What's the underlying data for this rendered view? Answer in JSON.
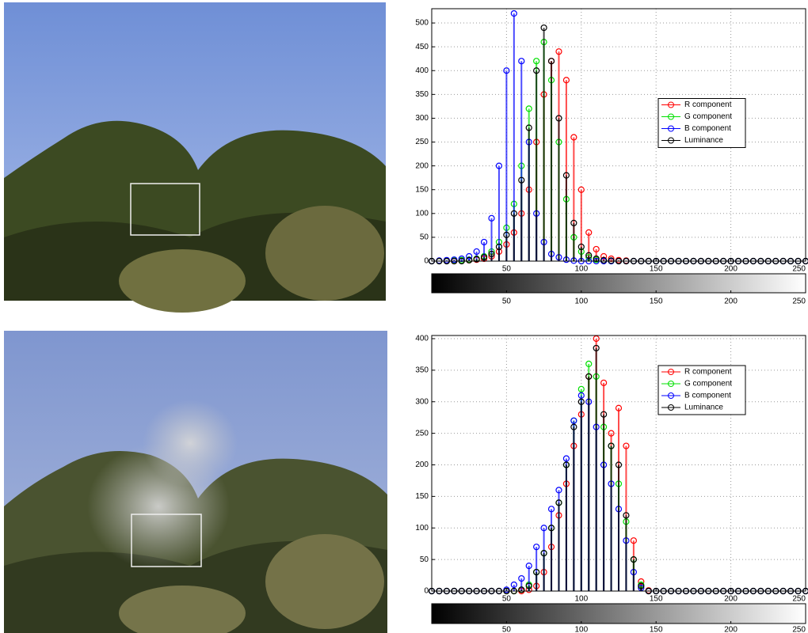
{
  "chart_data": [
    {
      "type": "stem",
      "x": [
        0,
        5,
        10,
        15,
        20,
        25,
        30,
        35,
        40,
        45,
        50,
        55,
        60,
        65,
        70,
        75,
        80,
        85,
        90,
        95,
        100,
        105,
        110,
        115,
        120,
        125,
        130,
        135,
        140,
        145,
        150,
        155,
        160,
        165,
        170,
        175,
        180,
        185,
        190,
        195,
        200,
        205,
        210,
        215,
        220,
        225,
        230,
        235,
        240,
        245,
        250
      ],
      "series": [
        {
          "name": "R component",
          "color": "#ff0000",
          "values": [
            0,
            0,
            0,
            0,
            1,
            2,
            3,
            5,
            10,
            20,
            35,
            60,
            100,
            150,
            250,
            350,
            420,
            440,
            380,
            260,
            150,
            60,
            25,
            10,
            5,
            2,
            1,
            0,
            0,
            0,
            0,
            0,
            0,
            0,
            0,
            0,
            0,
            0,
            0,
            0,
            0,
            0,
            0,
            0,
            0,
            0,
            0,
            0,
            0,
            0,
            0
          ]
        },
        {
          "name": "G component",
          "color": "#00e000",
          "values": [
            0,
            0,
            0,
            1,
            2,
            3,
            5,
            10,
            20,
            40,
            70,
            120,
            200,
            320,
            420,
            460,
            380,
            250,
            130,
            50,
            20,
            8,
            3,
            1,
            0,
            0,
            0,
            0,
            0,
            0,
            0,
            0,
            0,
            0,
            0,
            0,
            0,
            0,
            0,
            0,
            0,
            0,
            0,
            0,
            0,
            0,
            0,
            0,
            0,
            0,
            0
          ]
        },
        {
          "name": "B component",
          "color": "#0000ff",
          "values": [
            0,
            1,
            2,
            3,
            5,
            10,
            20,
            40,
            90,
            200,
            400,
            520,
            420,
            250,
            100,
            40,
            15,
            8,
            3,
            1,
            0,
            0,
            0,
            0,
            0,
            0,
            0,
            0,
            0,
            0,
            0,
            0,
            0,
            0,
            0,
            0,
            0,
            0,
            0,
            0,
            0,
            0,
            0,
            0,
            0,
            0,
            0,
            0,
            0,
            0,
            0
          ]
        },
        {
          "name": "Luminance",
          "color": "#000000",
          "values": [
            0,
            0,
            0,
            0,
            0,
            2,
            4,
            8,
            15,
            30,
            55,
            100,
            170,
            280,
            400,
            490,
            420,
            300,
            180,
            80,
            30,
            12,
            5,
            2,
            1,
            0,
            0,
            0,
            0,
            0,
            0,
            0,
            0,
            0,
            0,
            0,
            0,
            0,
            0,
            0,
            0,
            0,
            0,
            0,
            0,
            0,
            0,
            0,
            0,
            0,
            0
          ]
        }
      ],
      "xlim": [
        0,
        250
      ],
      "xticks": [
        50,
        100,
        150,
        200,
        250
      ],
      "ylim": [
        0,
        530
      ],
      "yticks": [
        0,
        50,
        100,
        150,
        200,
        250,
        300,
        350,
        400,
        450,
        500
      ],
      "colorbar_ticks": [
        50,
        100,
        150,
        200,
        250
      ],
      "grid": true,
      "legend": "center right"
    },
    {
      "type": "stem",
      "x": [
        0,
        5,
        10,
        15,
        20,
        25,
        30,
        35,
        40,
        45,
        50,
        55,
        60,
        65,
        70,
        75,
        80,
        85,
        90,
        95,
        100,
        105,
        110,
        115,
        120,
        125,
        130,
        135,
        140,
        145,
        150,
        155,
        160,
        165,
        170,
        175,
        180,
        185,
        190,
        195,
        200,
        205,
        210,
        215,
        220,
        225,
        230,
        235,
        240,
        245,
        250
      ],
      "series": [
        {
          "name": "R component",
          "color": "#ff0000",
          "values": [
            0,
            0,
            0,
            0,
            0,
            0,
            0,
            0,
            0,
            0,
            0,
            0,
            0,
            2,
            8,
            30,
            70,
            120,
            170,
            230,
            280,
            340,
            400,
            330,
            250,
            290,
            230,
            80,
            15,
            1,
            0,
            0,
            0,
            0,
            0,
            0,
            0,
            0,
            0,
            0,
            0,
            0,
            0,
            0,
            0,
            0,
            0,
            0,
            0,
            0,
            0
          ]
        },
        {
          "name": "G component",
          "color": "#00e000",
          "values": [
            0,
            0,
            0,
            0,
            0,
            0,
            0,
            0,
            0,
            0,
            0,
            0,
            2,
            10,
            30,
            60,
            100,
            140,
            200,
            270,
            320,
            360,
            340,
            260,
            230,
            170,
            110,
            50,
            10,
            0,
            0,
            0,
            0,
            0,
            0,
            0,
            0,
            0,
            0,
            0,
            0,
            0,
            0,
            0,
            0,
            0,
            0,
            0,
            0,
            0,
            0
          ]
        },
        {
          "name": "B component",
          "color": "#0000ff",
          "values": [
            0,
            0,
            0,
            0,
            0,
            0,
            0,
            0,
            0,
            0,
            2,
            10,
            20,
            40,
            70,
            100,
            130,
            160,
            210,
            270,
            310,
            300,
            260,
            200,
            170,
            130,
            80,
            30,
            5,
            0,
            0,
            0,
            0,
            0,
            0,
            0,
            0,
            0,
            0,
            0,
            0,
            0,
            0,
            0,
            0,
            0,
            0,
            0,
            0,
            0,
            0
          ]
        },
        {
          "name": "Luminance",
          "color": "#000000",
          "values": [
            0,
            0,
            0,
            0,
            0,
            0,
            0,
            0,
            0,
            0,
            0,
            0,
            2,
            8,
            30,
            60,
            100,
            140,
            200,
            260,
            300,
            340,
            385,
            280,
            230,
            200,
            120,
            50,
            8,
            0,
            0,
            0,
            0,
            0,
            0,
            0,
            0,
            0,
            0,
            0,
            0,
            0,
            0,
            0,
            0,
            0,
            0,
            0,
            0,
            0,
            0
          ]
        }
      ],
      "xlim": [
        0,
        250
      ],
      "xticks": [
        50,
        100,
        150,
        200,
        250
      ],
      "ylim": [
        0,
        405
      ],
      "yticks": [
        0,
        50,
        100,
        150,
        200,
        250,
        300,
        350,
        400
      ],
      "colorbar_ticks": [
        50,
        100,
        150,
        200,
        250
      ],
      "grid": true,
      "legend": "upper right"
    }
  ]
}
